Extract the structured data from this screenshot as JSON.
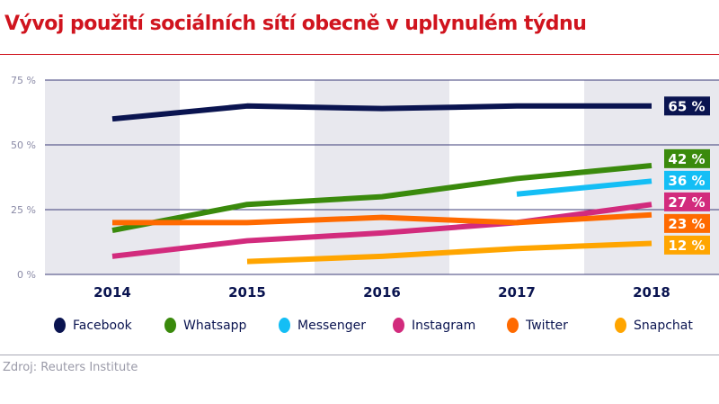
{
  "chart_data": {
    "type": "line",
    "title": "Vývoj použití sociálních sítí obecně v uplynulém týdnu",
    "categories": [
      "2014",
      "2015",
      "2016",
      "2017",
      "2018"
    ],
    "ylim": [
      0,
      75
    ],
    "yticks": [
      0,
      25,
      50,
      75
    ],
    "ytick_labels": [
      "0 %",
      "25 %",
      "50 %",
      "75 %"
    ],
    "grid": true,
    "legend": "bottom",
    "series": [
      {
        "name": "Facebook",
        "color": "#0a1450",
        "values": [
          60,
          65,
          64,
          65,
          65
        ],
        "end_label": "65 %"
      },
      {
        "name": "Whatsapp",
        "color": "#3a8a0c",
        "values": [
          17,
          27,
          30,
          37,
          42
        ],
        "end_label": "42 %"
      },
      {
        "name": "Messenger",
        "color": "#14bef5",
        "values": [
          null,
          null,
          null,
          31,
          36
        ],
        "end_label": "36 %"
      },
      {
        "name": "Instagram",
        "color": "#d22b7d",
        "values": [
          7,
          13,
          16,
          20,
          27
        ],
        "end_label": "27 %"
      },
      {
        "name": "Twitter",
        "color": "#ff6a00",
        "values": [
          20,
          20,
          22,
          20,
          23
        ],
        "end_label": "23 %"
      },
      {
        "name": "Snapchat",
        "color": "#ffa500",
        "values": [
          null,
          5,
          7,
          10,
          12
        ],
        "end_label": "12 %"
      }
    ]
  },
  "source": "Zdroj: Reuters Institute"
}
